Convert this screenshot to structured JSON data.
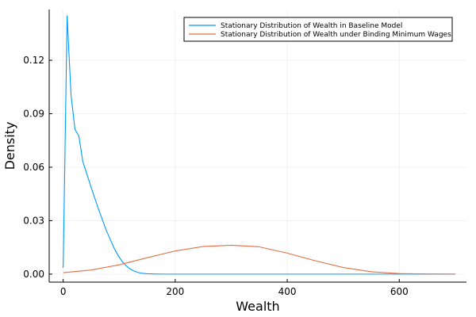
{
  "chart_data": {
    "type": "line",
    "xlabel": "Wealth",
    "ylabel": "Density",
    "xlim": [
      -25,
      720
    ],
    "ylim": [
      -0.0045,
      0.1485
    ],
    "x_ticks": [
      0,
      200,
      400,
      600
    ],
    "x_tick_labels": [
      "0",
      "200",
      "400",
      "600"
    ],
    "y_ticks": [
      0,
      0.03,
      0.06,
      0.09,
      0.12
    ],
    "y_tick_labels": [
      "0.00",
      "0.03",
      "0.06",
      "0.09",
      "0.12"
    ],
    "grid": true,
    "legend_position": "top-right",
    "series": [
      {
        "name": "Stationary Distribution of Wealth in Baseline Model",
        "color": "#009AFA",
        "x": [
          0,
          7,
          14,
          21,
          28,
          35,
          42,
          49,
          56,
          63,
          70,
          77,
          84,
          91,
          98,
          105,
          112,
          119,
          126,
          133,
          140,
          150,
          160,
          180,
          200,
          250,
          300,
          350,
          400,
          450,
          500,
          550,
          600,
          650,
          700
        ],
        "y": [
          0.0035,
          0.145,
          0.1005,
          0.0812,
          0.0775,
          0.0632,
          0.0565,
          0.0495,
          0.043,
          0.0365,
          0.0305,
          0.0245,
          0.0195,
          0.0145,
          0.0105,
          0.0072,
          0.0048,
          0.003,
          0.0018,
          0.001,
          0.0005,
          0.0002,
          0.0001,
          0,
          0,
          0,
          0,
          0,
          0,
          0,
          0,
          0,
          0,
          0,
          0
        ]
      },
      {
        "name": "Stationary Distribution of Wealth under Binding Minimum Wages",
        "color": "#E26F46",
        "x": [
          0,
          50,
          100,
          150,
          200,
          250,
          300,
          350,
          400,
          450,
          500,
          550,
          600,
          650,
          700
        ],
        "y": [
          0.0008,
          0.0023,
          0.0052,
          0.0092,
          0.013,
          0.0155,
          0.0162,
          0.0153,
          0.0118,
          0.0075,
          0.0037,
          0.0013,
          0.0003,
          0.0001,
          0
        ]
      }
    ]
  }
}
